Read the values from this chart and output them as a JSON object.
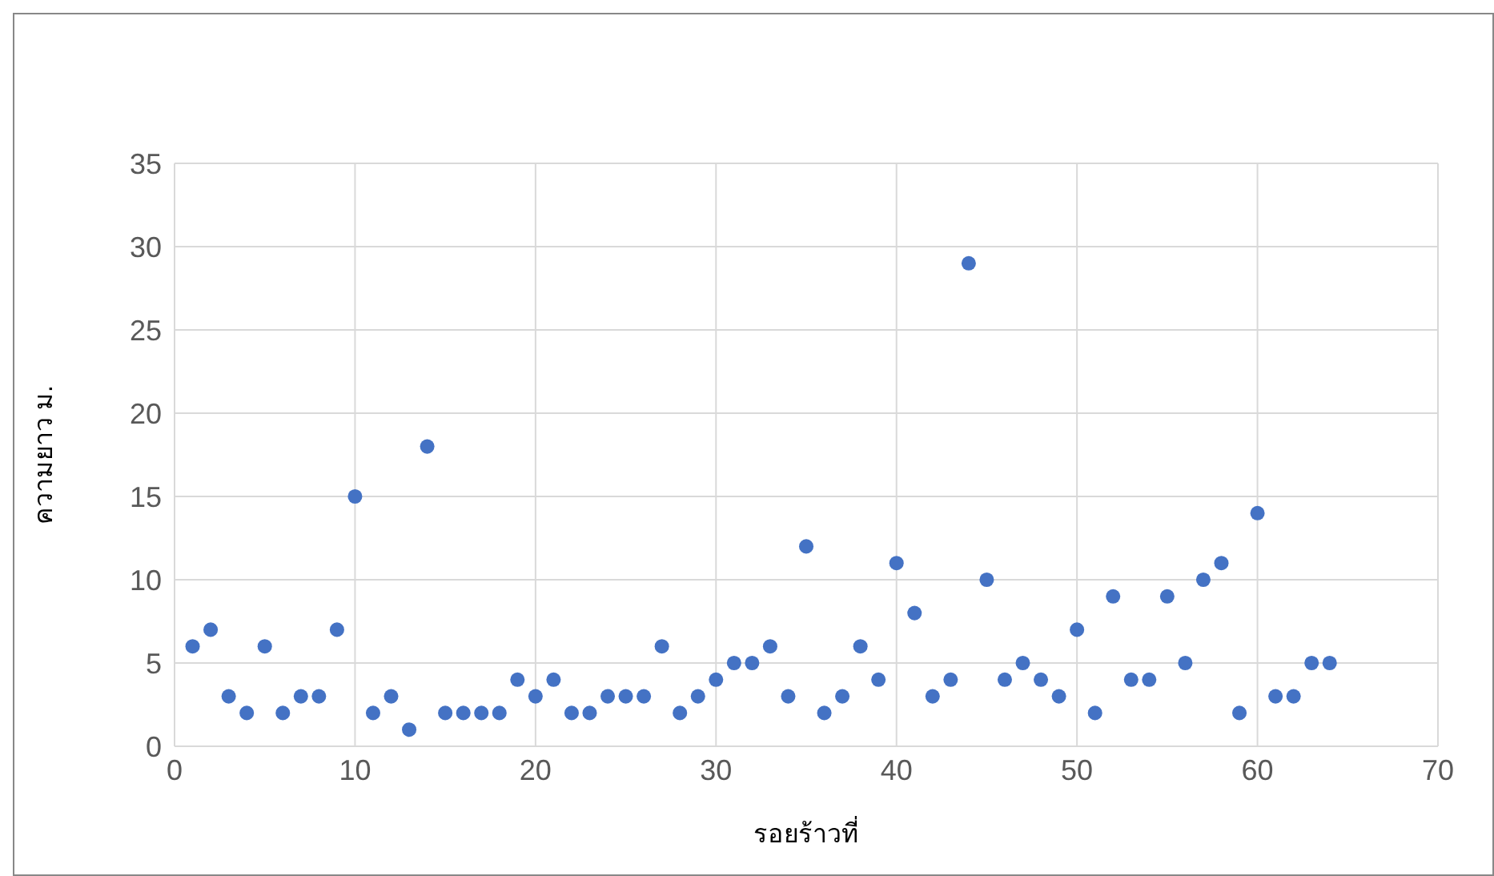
{
  "chart_data": {
    "type": "scatter",
    "xlabel": "รอยร้าวที่",
    "ylabel": "ความยาว ม.",
    "x": [
      1,
      2,
      3,
      4,
      5,
      6,
      7,
      8,
      9,
      10,
      11,
      12,
      13,
      14,
      15,
      16,
      17,
      18,
      19,
      20,
      21,
      22,
      23,
      24,
      25,
      26,
      27,
      28,
      29,
      30,
      31,
      32,
      33,
      34,
      35,
      36,
      37,
      38,
      39,
      40,
      41,
      42,
      43,
      44,
      45,
      46,
      47,
      48,
      49,
      50,
      51,
      52,
      53,
      54,
      55,
      56,
      57,
      58,
      59,
      60,
      61,
      62,
      63,
      64
    ],
    "series": [
      {
        "color": "#4472c4",
        "values": [
          6,
          7,
          3,
          2,
          6,
          2,
          3,
          3,
          7,
          15,
          2,
          3,
          1,
          18,
          2,
          2,
          2,
          2,
          4,
          3,
          4,
          2,
          2,
          3,
          3,
          3,
          6,
          2,
          3,
          4,
          5,
          5,
          6,
          3,
          12,
          2,
          3,
          6,
          4,
          11,
          8,
          3,
          4,
          29,
          10,
          4,
          5,
          4,
          3,
          7,
          2,
          9,
          4,
          4,
          9,
          5,
          10,
          11,
          2,
          14,
          3,
          3,
          5,
          5
        ]
      }
    ],
    "xlim": [
      0,
      70
    ],
    "xticks": [
      0,
      10,
      20,
      30,
      40,
      50,
      60,
      70
    ],
    "ylim": [
      0,
      35
    ],
    "yticks": [
      0,
      5,
      10,
      15,
      20,
      25,
      30,
      35
    ],
    "grid": true,
    "marker": "circle"
  }
}
